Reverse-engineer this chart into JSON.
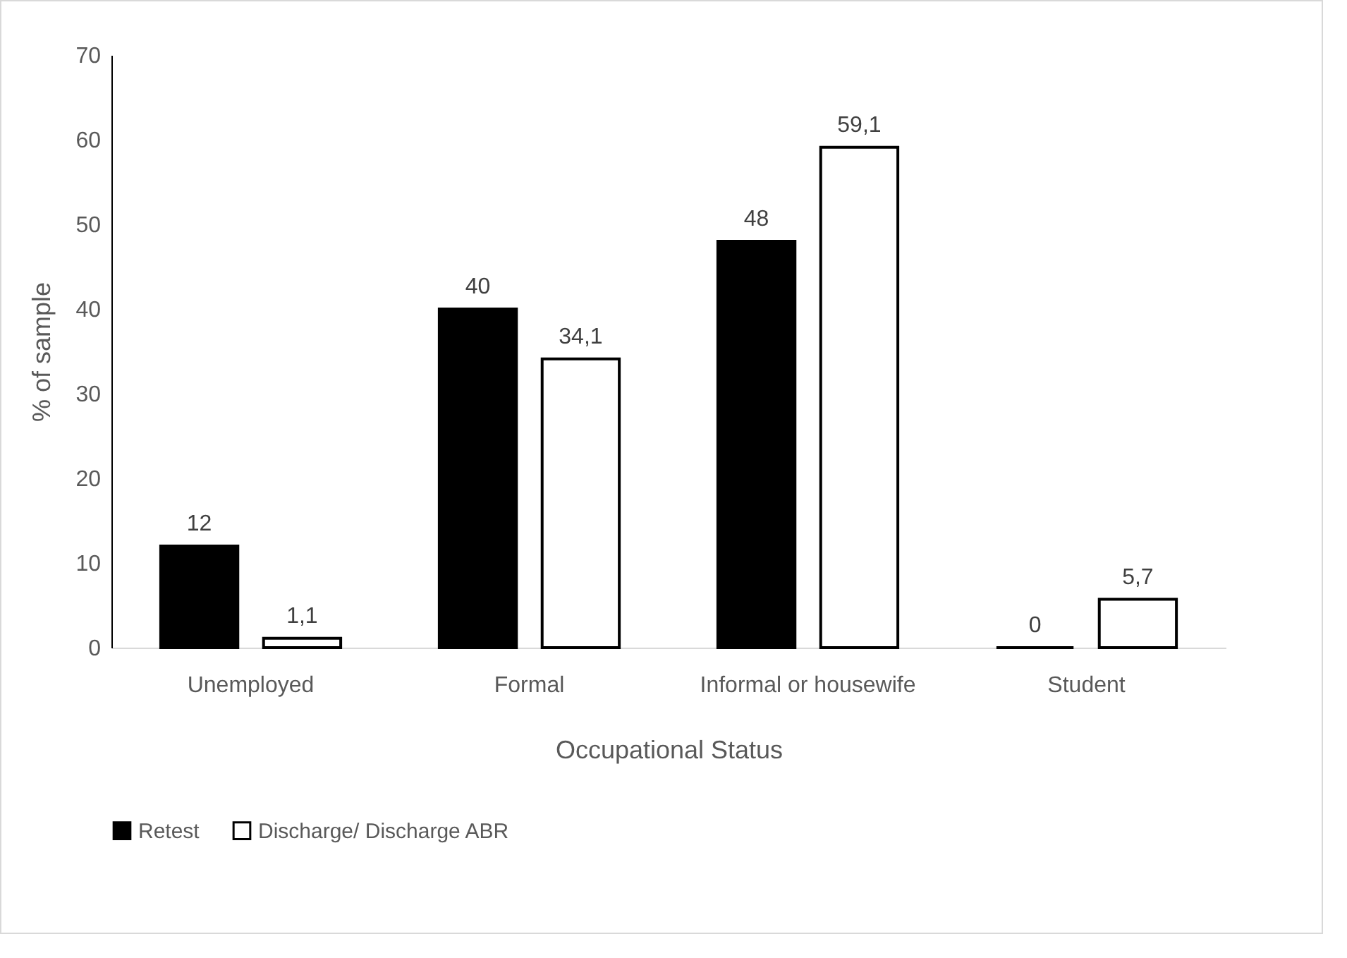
{
  "chart_data": {
    "type": "bar",
    "xlabel": "Occupational Status",
    "ylabel": "% of sample",
    "categories": [
      "Unemployed",
      "Formal",
      "Informal or housewife",
      "Student"
    ],
    "series": [
      {
        "name": "Retest",
        "color": "#000000",
        "values": [
          12,
          40,
          48,
          0
        ],
        "value_labels": [
          "12",
          "40",
          "48",
          "0"
        ]
      },
      {
        "name": "Discharge/ Discharge ABR",
        "color": "#ffffff",
        "values": [
          1.1,
          34.1,
          59.1,
          5.7
        ],
        "value_labels": [
          "1,1",
          "34,1",
          "59,1",
          "5,7"
        ]
      }
    ],
    "ylim": [
      0,
      70
    ],
    "yticks": [
      0,
      10,
      20,
      30,
      40,
      50,
      60,
      70
    ],
    "grid": false,
    "legend": "bottom"
  }
}
